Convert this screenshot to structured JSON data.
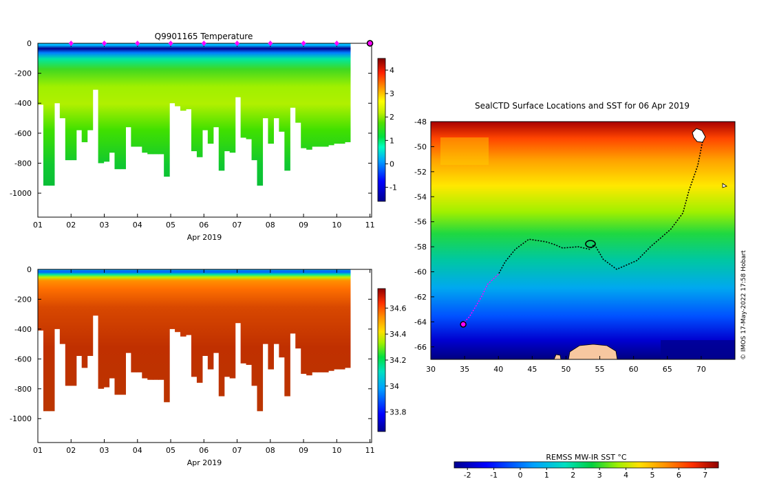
{
  "colors": {
    "white_gaps": "#ffffff",
    "land": "#f7c7a0",
    "track": "#000000",
    "track_recent": "#ff00ff",
    "marker": "#ff00ff"
  },
  "chart_data": [
    {
      "type": "heatmap",
      "id": "temperature",
      "title": "Q9901165  Temperature",
      "xlabel": "Apr 2019",
      "ylabel": "",
      "xlim": [
        1,
        11.05
      ],
      "ylim": [
        -1160,
        0
      ],
      "x_ticks": [
        "01",
        "02",
        "03",
        "04",
        "05",
        "06",
        "07",
        "08",
        "09",
        "10",
        "11"
      ],
      "y_ticks": [
        "0",
        "-200",
        "-400",
        "-600",
        "-800",
        "-1000"
      ],
      "colorbar": {
        "min": -1.6,
        "max": 4.5,
        "ticks": [
          "-1",
          "0",
          "1",
          "2",
          "3",
          "4"
        ]
      },
      "profile_markers_day": [
        2,
        3,
        4,
        5,
        6,
        7,
        8,
        9,
        10,
        11
      ],
      "latest_profile_day": 11,
      "profiles": {
        "start_day": 1.0,
        "step_days": 0.165,
        "max_depth_m": [
          410,
          950,
          950,
          400,
          500,
          780,
          780,
          580,
          660,
          580,
          310,
          800,
          790,
          730,
          840,
          840,
          560,
          690,
          690,
          730,
          740,
          740,
          740,
          890,
          400,
          420,
          450,
          440,
          720,
          760,
          580,
          670,
          560,
          850,
          720,
          730,
          360,
          630,
          640,
          780,
          950,
          500,
          670,
          500,
          590,
          850,
          430,
          530,
          700,
          710,
          690,
          690,
          690,
          680,
          670,
          670,
          660
        ]
      }
    },
    {
      "type": "heatmap",
      "id": "salinity",
      "title": "",
      "xlabel": "Apr 2019",
      "ylabel": "",
      "xlim": [
        1,
        11.05
      ],
      "ylim": [
        -1160,
        0
      ],
      "x_ticks": [
        "01",
        "02",
        "03",
        "04",
        "05",
        "06",
        "07",
        "08",
        "09",
        "10",
        "11"
      ],
      "y_ticks": [
        "0",
        "-200",
        "-400",
        "-600",
        "-800",
        "-1000"
      ],
      "colorbar": {
        "min": 33.65,
        "max": 34.75,
        "ticks": [
          "33.8",
          "34",
          "34.2",
          "34.4",
          "34.6"
        ]
      }
    },
    {
      "type": "heatmap",
      "id": "sst_map",
      "title": "SealCTD Surface Locations and SST for 06 Apr 2019",
      "xlabel": "",
      "ylabel": "",
      "xlim": [
        30,
        75
      ],
      "ylim": [
        -67,
        -48
      ],
      "x_ticks": [
        "30",
        "35",
        "40",
        "45",
        "50",
        "55",
        "60",
        "65",
        "70"
      ],
      "y_ticks": [
        "-48",
        "-50",
        "-52",
        "-54",
        "-56",
        "-58",
        "-60",
        "-62",
        "-64",
        "-66"
      ],
      "colorbar": {
        "label": "REMSS MW-IR SST °C",
        "min": -2.5,
        "max": 7.5,
        "ticks": [
          "-2",
          "-1",
          "0",
          "1",
          "2",
          "3",
          "4",
          "5",
          "6",
          "7"
        ]
      },
      "track": [
        [
          70.2,
          -49.6
        ],
        [
          69.5,
          -51.5
        ],
        [
          68.2,
          -53.5
        ],
        [
          67.3,
          -55.3
        ],
        [
          65.5,
          -56.6
        ],
        [
          62.5,
          -58
        ],
        [
          60.5,
          -59.1
        ],
        [
          57.5,
          -59.8
        ],
        [
          55.5,
          -59
        ],
        [
          54.2,
          -57.8
        ],
        [
          53.5,
          -58.2
        ],
        [
          51.8,
          -58
        ],
        [
          49.5,
          -58.1
        ],
        [
          48.2,
          -57.8
        ],
        [
          47,
          -57.6
        ],
        [
          44.5,
          -57.4
        ],
        [
          42.5,
          -58.2
        ],
        [
          41,
          -59.2
        ],
        [
          40,
          -60.2
        ],
        [
          39.2,
          -60.6
        ],
        [
          38.4,
          -61
        ],
        [
          37.5,
          -62
        ],
        [
          36.5,
          -62.9
        ],
        [
          35.7,
          -63.6
        ],
        [
          34.8,
          -64.1
        ]
      ],
      "recent_track_from_index": 18,
      "current_position": [
        34.8,
        -64.2
      ],
      "credit": "© IMOS 17-May-2022 17:58 Hobart"
    }
  ]
}
